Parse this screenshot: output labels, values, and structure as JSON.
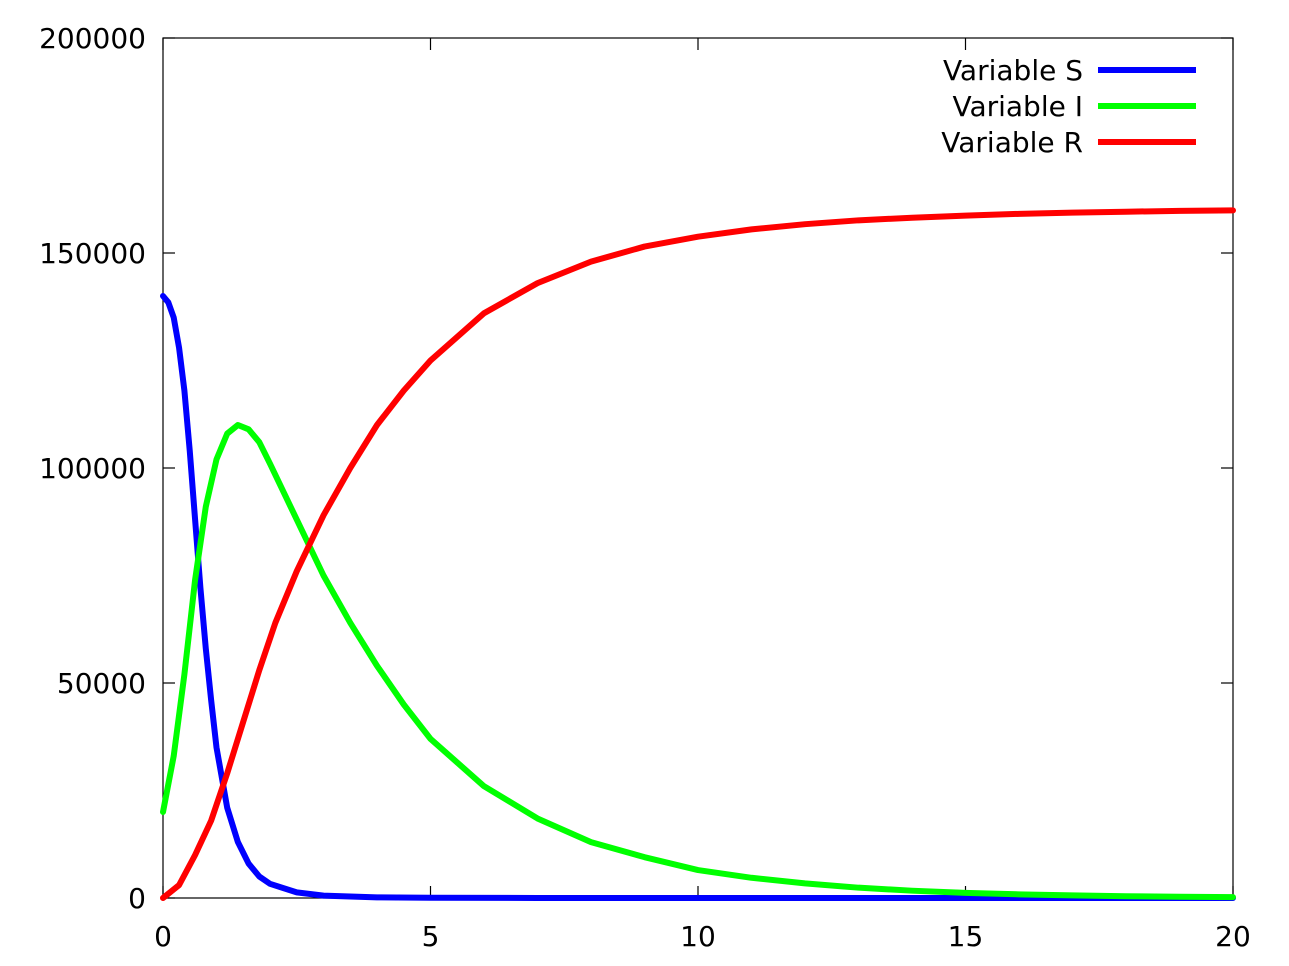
{
  "chart_data": {
    "type": "line",
    "title": "",
    "xlabel": "",
    "ylabel": "",
    "xlim": [
      0,
      20
    ],
    "ylim": [
      0,
      200000
    ],
    "x_ticks": [
      0,
      5,
      10,
      15,
      20
    ],
    "y_ticks": [
      0,
      50000,
      100000,
      150000,
      200000
    ],
    "grid": false,
    "legend_position": "top-right",
    "series": [
      {
        "name": "Variable S",
        "color": "#0000ff",
        "points": [
          [
            0,
            140000
          ],
          [
            0.1,
            138500
          ],
          [
            0.2,
            135000
          ],
          [
            0.3,
            128000
          ],
          [
            0.4,
            118000
          ],
          [
            0.5,
            104000
          ],
          [
            0.6,
            88000
          ],
          [
            0.7,
            72000
          ],
          [
            0.8,
            58000
          ],
          [
            0.9,
            46000
          ],
          [
            1.0,
            35000
          ],
          [
            1.2,
            21000
          ],
          [
            1.4,
            13000
          ],
          [
            1.6,
            8000
          ],
          [
            1.8,
            5000
          ],
          [
            2.0,
            3300
          ],
          [
            2.5,
            1300
          ],
          [
            3.0,
            550
          ],
          [
            4.0,
            150
          ],
          [
            5.0,
            50
          ],
          [
            7.0,
            10
          ],
          [
            10.0,
            0
          ],
          [
            15.0,
            0
          ],
          [
            20.0,
            0
          ]
        ]
      },
      {
        "name": "Variable I",
        "color": "#00ff00",
        "points": [
          [
            0,
            20000
          ],
          [
            0.2,
            33000
          ],
          [
            0.4,
            52000
          ],
          [
            0.6,
            74000
          ],
          [
            0.8,
            91000
          ],
          [
            1.0,
            102000
          ],
          [
            1.2,
            108000
          ],
          [
            1.4,
            110000
          ],
          [
            1.6,
            109000
          ],
          [
            1.8,
            106000
          ],
          [
            2.0,
            101000
          ],
          [
            2.5,
            88000
          ],
          [
            3.0,
            75000
          ],
          [
            3.5,
            64000
          ],
          [
            4.0,
            54000
          ],
          [
            4.5,
            45000
          ],
          [
            5.0,
            37000
          ],
          [
            6.0,
            26000
          ],
          [
            7.0,
            18500
          ],
          [
            8.0,
            13000
          ],
          [
            9.0,
            9500
          ],
          [
            10.0,
            6500
          ],
          [
            11.0,
            4700
          ],
          [
            12.0,
            3400
          ],
          [
            13.0,
            2400
          ],
          [
            14.0,
            1700
          ],
          [
            15.0,
            1200
          ],
          [
            16.0,
            850
          ],
          [
            17.0,
            600
          ],
          [
            18.0,
            420
          ],
          [
            19.0,
            300
          ],
          [
            20.0,
            200
          ]
        ]
      },
      {
        "name": "Variable R",
        "color": "#ff0000",
        "points": [
          [
            0,
            0
          ],
          [
            0.3,
            3000
          ],
          [
            0.6,
            10000
          ],
          [
            0.9,
            18000
          ],
          [
            1.2,
            29000
          ],
          [
            1.5,
            41000
          ],
          [
            1.8,
            53000
          ],
          [
            2.1,
            64000
          ],
          [
            2.5,
            76000
          ],
          [
            3.0,
            89000
          ],
          [
            3.5,
            100000
          ],
          [
            4.0,
            110000
          ],
          [
            4.5,
            118000
          ],
          [
            5.0,
            125000
          ],
          [
            6.0,
            136000
          ],
          [
            7.0,
            143000
          ],
          [
            8.0,
            148000
          ],
          [
            9.0,
            151500
          ],
          [
            10.0,
            153800
          ],
          [
            11.0,
            155500
          ],
          [
            12.0,
            156700
          ],
          [
            13.0,
            157600
          ],
          [
            14.0,
            158200
          ],
          [
            15.0,
            158700
          ],
          [
            16.0,
            159100
          ],
          [
            17.0,
            159400
          ],
          [
            18.0,
            159600
          ],
          [
            19.0,
            159800
          ],
          [
            20.0,
            159900
          ]
        ]
      }
    ]
  }
}
